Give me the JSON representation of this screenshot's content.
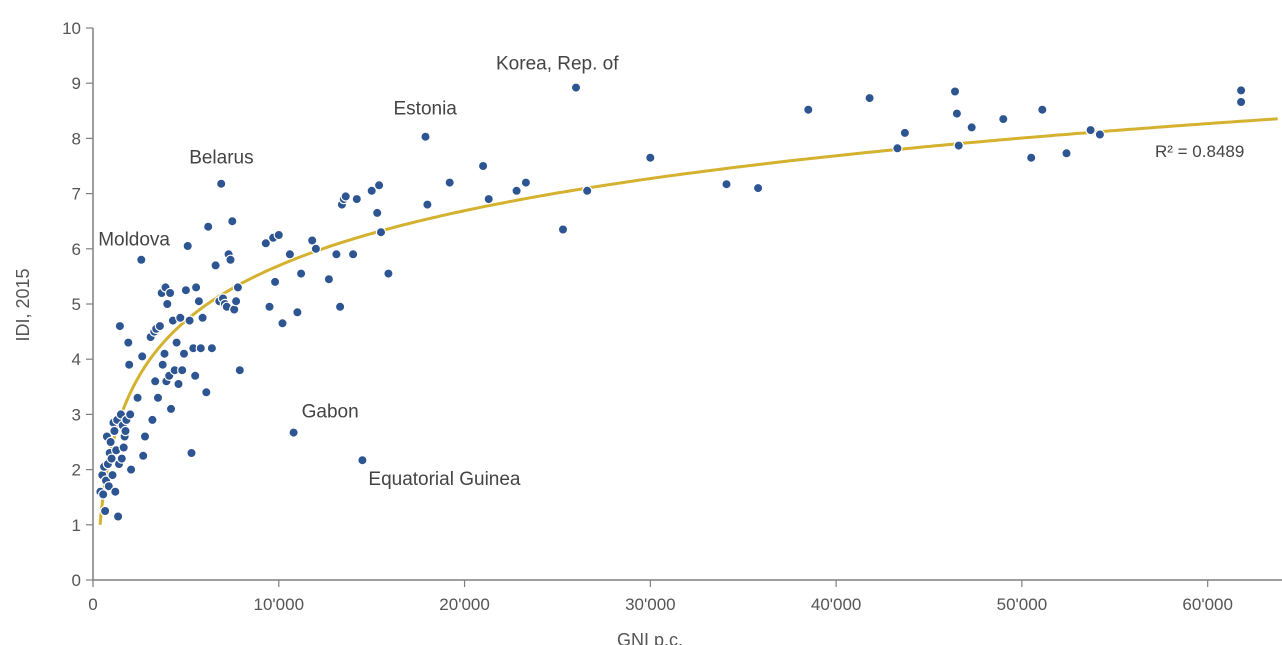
{
  "chart_data": {
    "type": "scatter",
    "xlabel": "GNI p.c.",
    "ylabel": "IDI, 2015",
    "xlim": [
      0,
      64000
    ],
    "ylim": [
      0,
      10
    ],
    "x_ticks": [
      0,
      10000,
      20000,
      30000,
      40000,
      50000,
      60000
    ],
    "x_tick_labels": [
      "0",
      "10'000",
      "20'000",
      "30'000",
      "40'000",
      "50'000",
      "60'000"
    ],
    "y_ticks": [
      0,
      1,
      2,
      3,
      4,
      5,
      6,
      7,
      8,
      9,
      10
    ],
    "y_tick_labels": [
      "0",
      "1",
      "2",
      "3",
      "4",
      "5",
      "6",
      "7",
      "8",
      "9",
      "10"
    ],
    "grid": false,
    "colors": {
      "points": "#2d5591",
      "trendline": "#d4b12f",
      "axis": "#7f7f7f",
      "text": "#555555"
    },
    "trendline": {
      "type": "logarithmic",
      "a": 1.4357,
      "b": -7.528,
      "label": "R² = 0.8489"
    },
    "annotations": [
      {
        "text": "Korea, Rep. of",
        "x": 26000,
        "y": 8.92
      },
      {
        "text": "Estonia",
        "x": 17900,
        "y": 8.03
      },
      {
        "text": "Belarus",
        "x": 6900,
        "y": 7.18
      },
      {
        "text": "Moldova",
        "x": 2700,
        "y": 5.81
      },
      {
        "text": "Gabon",
        "x": 10800,
        "y": 2.67
      },
      {
        "text": "Equatorial Guinea",
        "x": 14500,
        "y": 2.17
      }
    ],
    "points": [
      [
        400,
        1.6
      ],
      [
        500,
        1.9
      ],
      [
        550,
        1.55
      ],
      [
        600,
        2.05
      ],
      [
        650,
        1.25
      ],
      [
        700,
        1.8
      ],
      [
        750,
        2.6
      ],
      [
        800,
        2.1
      ],
      [
        850,
        1.7
      ],
      [
        900,
        2.3
      ],
      [
        950,
        2.5
      ],
      [
        1000,
        2.2
      ],
      [
        1050,
        1.9
      ],
      [
        1100,
        2.85
      ],
      [
        1150,
        2.7
      ],
      [
        1200,
        1.6
      ],
      [
        1250,
        2.35
      ],
      [
        1300,
        2.9
      ],
      [
        1350,
        1.15
      ],
      [
        1400,
        2.1
      ],
      [
        1450,
        4.6
      ],
      [
        1500,
        3.0
      ],
      [
        1550,
        2.2
      ],
      [
        1600,
        2.8
      ],
      [
        1650,
        2.4
      ],
      [
        1700,
        2.6
      ],
      [
        1750,
        2.7
      ],
      [
        1800,
        2.9
      ],
      [
        1900,
        4.3
      ],
      [
        1950,
        3.9
      ],
      [
        2000,
        3.0
      ],
      [
        2050,
        2.0
      ],
      [
        2400,
        3.3
      ],
      [
        2600,
        5.8
      ],
      [
        2650,
        4.05
      ],
      [
        2700,
        2.25
      ],
      [
        2800,
        2.6
      ],
      [
        3100,
        4.4
      ],
      [
        3200,
        2.9
      ],
      [
        3300,
        4.5
      ],
      [
        3350,
        3.6
      ],
      [
        3400,
        4.55
      ],
      [
        3500,
        3.3
      ],
      [
        3600,
        4.6
      ],
      [
        3700,
        5.2
      ],
      [
        3750,
        3.9
      ],
      [
        3850,
        4.1
      ],
      [
        3900,
        5.3
      ],
      [
        3950,
        3.6
      ],
      [
        4000,
        5.0
      ],
      [
        4100,
        3.7
      ],
      [
        4150,
        5.2
      ],
      [
        4200,
        3.1
      ],
      [
        4300,
        4.7
      ],
      [
        4400,
        3.8
      ],
      [
        4500,
        4.3
      ],
      [
        4600,
        3.55
      ],
      [
        4700,
        4.75
      ],
      [
        4800,
        3.8
      ],
      [
        4900,
        4.1
      ],
      [
        5000,
        5.25
      ],
      [
        5100,
        6.05
      ],
      [
        5200,
        4.7
      ],
      [
        5300,
        2.3
      ],
      [
        5400,
        4.2
      ],
      [
        5500,
        3.7
      ],
      [
        5550,
        5.3
      ],
      [
        5700,
        5.05
      ],
      [
        5800,
        4.2
      ],
      [
        5900,
        4.75
      ],
      [
        6100,
        3.4
      ],
      [
        6200,
        6.4
      ],
      [
        6400,
        4.2
      ],
      [
        6600,
        5.7
      ],
      [
        6800,
        5.05
      ],
      [
        6900,
        7.18
      ],
      [
        7000,
        5.1
      ],
      [
        7100,
        5.0
      ],
      [
        7200,
        4.95
      ],
      [
        7300,
        5.9
      ],
      [
        7400,
        5.8
      ],
      [
        7500,
        6.5
      ],
      [
        7600,
        4.9
      ],
      [
        7700,
        5.05
      ],
      [
        7800,
        5.3
      ],
      [
        7900,
        3.8
      ],
      [
        9300,
        6.1
      ],
      [
        9500,
        4.95
      ],
      [
        9700,
        6.2
      ],
      [
        9800,
        5.4
      ],
      [
        10000,
        6.25
      ],
      [
        10200,
        4.65
      ],
      [
        10600,
        5.9
      ],
      [
        10800,
        2.67
      ],
      [
        11000,
        4.85
      ],
      [
        11200,
        5.55
      ],
      [
        11800,
        6.15
      ],
      [
        12000,
        6.0
      ],
      [
        12700,
        5.45
      ],
      [
        13100,
        5.9
      ],
      [
        13300,
        4.95
      ],
      [
        13400,
        6.8
      ],
      [
        13500,
        6.9
      ],
      [
        13600,
        6.95
      ],
      [
        14000,
        5.9
      ],
      [
        14200,
        6.9
      ],
      [
        14500,
        2.17
      ],
      [
        15000,
        7.05
      ],
      [
        15300,
        6.65
      ],
      [
        15400,
        7.15
      ],
      [
        15500,
        6.3
      ],
      [
        15900,
        5.55
      ],
      [
        17900,
        8.03
      ],
      [
        18000,
        6.8
      ],
      [
        19200,
        7.2
      ],
      [
        21000,
        7.5
      ],
      [
        21300,
        6.9
      ],
      [
        22800,
        7.05
      ],
      [
        23300,
        7.2
      ],
      [
        25300,
        6.35
      ],
      [
        26000,
        8.92
      ],
      [
        26600,
        7.05
      ],
      [
        30000,
        7.65
      ],
      [
        34100,
        7.17
      ],
      [
        35800,
        7.1
      ],
      [
        38500,
        8.52
      ],
      [
        41800,
        8.73
      ],
      [
        43300,
        7.82
      ],
      [
        43700,
        8.1
      ],
      [
        46400,
        8.85
      ],
      [
        46500,
        8.45
      ],
      [
        46600,
        7.87
      ],
      [
        47300,
        8.2
      ],
      [
        49000,
        8.35
      ],
      [
        50500,
        7.65
      ],
      [
        51100,
        8.52
      ],
      [
        52400,
        7.73
      ],
      [
        53700,
        8.15
      ],
      [
        54200,
        8.07
      ],
      [
        61800,
        8.87
      ],
      [
        61800,
        8.66
      ]
    ]
  }
}
